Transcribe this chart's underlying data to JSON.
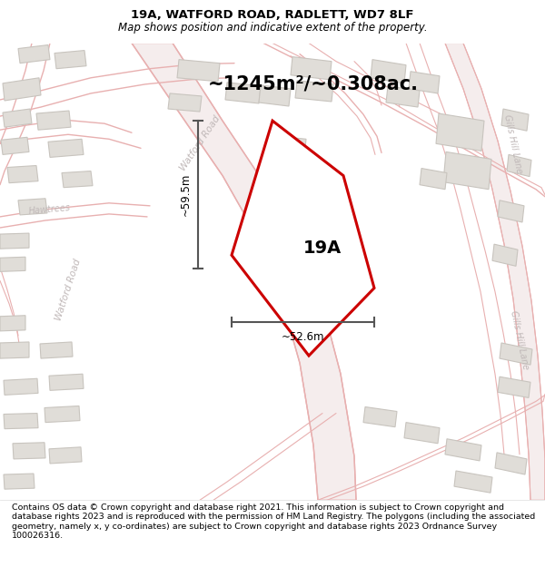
{
  "title_line1": "19A, WATFORD ROAD, RADLETT, WD7 8LF",
  "title_line2": "Map shows position and indicative extent of the property.",
  "area_label": "~1245m²/~0.308ac.",
  "property_label": "19A",
  "dim_vertical": "~59.5m",
  "dim_horizontal": "~52.6m",
  "road_label_watford_diag": "Watford Road",
  "road_label_watford_left": "Watford Road",
  "road_label_hawtrees": "Hawtrees",
  "road_label_gills1": "Gills Hill Lane",
  "road_label_gills2": "Gills Hill Lane",
  "copyright_text": "Contains OS data © Crown copyright and database right 2021. This information is subject to Crown copyright and database rights 2023 and is reproduced with the permission of HM Land Registry. The polygons (including the associated geometry, namely x, y co-ordinates) are subject to Crown copyright and database rights 2023 Ordnance Survey 100026316.",
  "map_bg": "#f7f6f4",
  "road_color": "#e8b0b0",
  "road_fill": "#f5eded",
  "building_color": "#e0ddd8",
  "building_edge": "#c8c4be",
  "property_color": "#ffffff",
  "property_edge": "#cc0000",
  "dim_color": "#555555",
  "label_color": "#c0b8b8",
  "title_fontsize": 9.5,
  "subtitle_fontsize": 8.5,
  "area_fontsize": 15,
  "prop_label_fontsize": 14,
  "road_fontsize": 7.5,
  "dim_fontsize": 8.5,
  "copyright_fontsize": 6.8
}
